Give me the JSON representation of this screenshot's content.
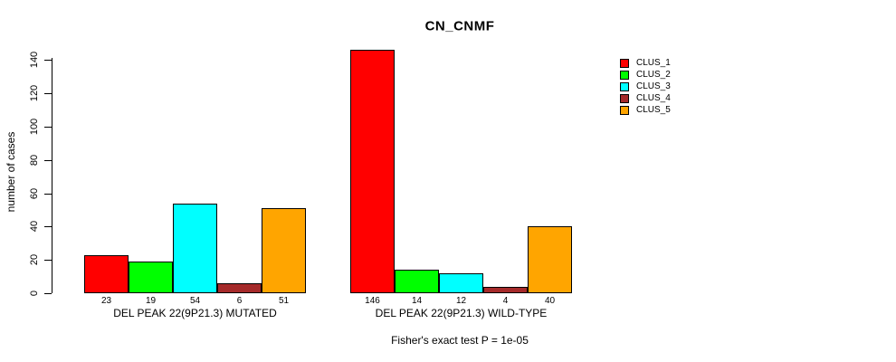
{
  "chart_data": {
    "type": "bar",
    "title": "CN_CNMF",
    "ylabel": "number of cases",
    "ylim": [
      0,
      140
    ],
    "yticks": [
      0,
      20,
      40,
      60,
      80,
      100,
      120,
      140
    ],
    "grid": false,
    "legend_position": "top-right",
    "series": [
      {
        "name": "CLUS_1",
        "color": "#FF0000"
      },
      {
        "name": "CLUS_2",
        "color": "#00FF00"
      },
      {
        "name": "CLUS_3",
        "color": "#00FFFF"
      },
      {
        "name": "CLUS_4",
        "color": "#A52A2A"
      },
      {
        "name": "CLUS_5",
        "color": "#FFA500"
      }
    ],
    "groups": [
      {
        "label": "DEL PEAK 22(9P21.3) MUTATED",
        "values": [
          23,
          19,
          54,
          6,
          51
        ]
      },
      {
        "label": "DEL PEAK 22(9P21.3) WILD-TYPE",
        "values": [
          146,
          14,
          12,
          4,
          40
        ]
      }
    ],
    "annotation": "Fisher's exact test P = 1e-05"
  }
}
